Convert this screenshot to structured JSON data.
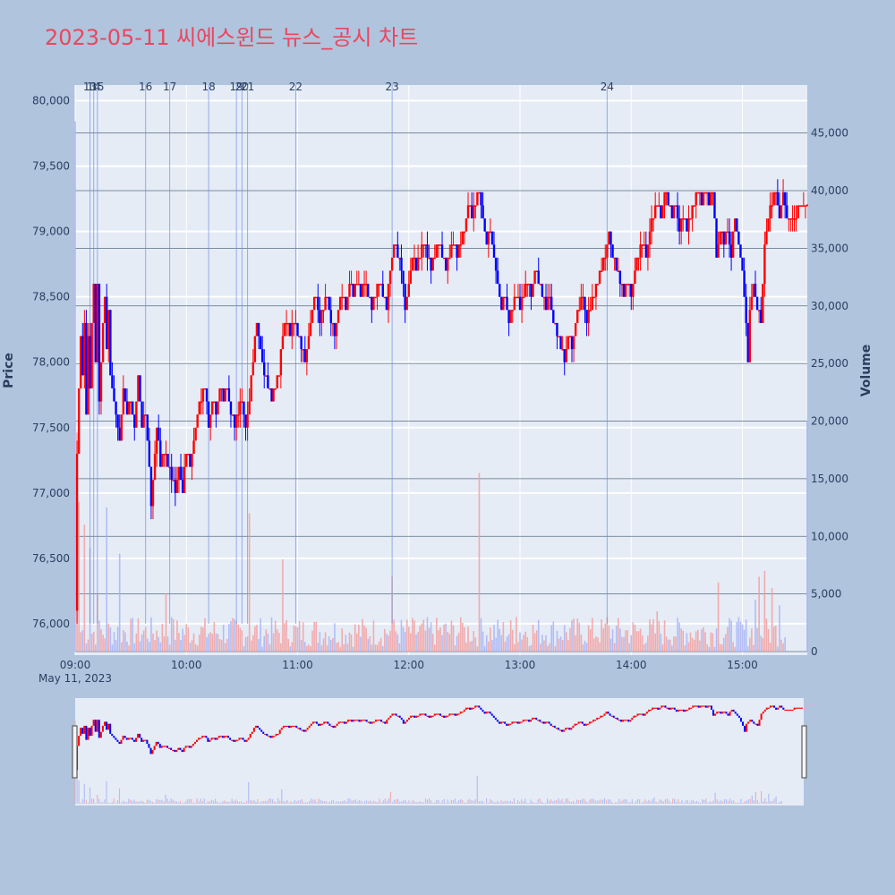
{
  "title": "2023-05-11 씨에스윈드 뉴스_공시 차트",
  "colors": {
    "background": "#b0c4de",
    "plot_bg": "#e5ecf6",
    "up": "#ff0000",
    "down": "#0000ff",
    "title": "#e8475f",
    "news_line": "#6f8fe6",
    "hgrid_right": "#5a6b80"
  },
  "chart_data": {
    "type": "candlestick",
    "title": "2023-05-11 씨에스윈드 뉴스_공시 차트",
    "ylabel": "Price",
    "y2label": "Volume",
    "date_label": "May 11, 2023",
    "x_ticks": [
      "09:00",
      "10:00",
      "11:00",
      "12:00",
      "13:00",
      "14:00",
      "15:00"
    ],
    "x_range_minutes": [
      0,
      395
    ],
    "y_ticks": [
      76000,
      76500,
      77000,
      77500,
      78000,
      78500,
      79000,
      79500,
      80000
    ],
    "y_range": [
      75760,
      80120
    ],
    "y_tick_labels": [
      "76,000",
      "76,500",
      "77,000",
      "77,500",
      "78,000",
      "78,500",
      "79,000",
      "79,500",
      "80,000"
    ],
    "y2_ticks": [
      0,
      5000,
      10000,
      15000,
      20000,
      25000,
      30000,
      35000,
      40000,
      45000
    ],
    "y2_tick_labels": [
      "0",
      "5,000",
      "10,000",
      "15,000",
      "20,000",
      "25,000",
      "30,000",
      "35,000",
      "40,000",
      "45,000"
    ],
    "y2_range": [
      0,
      48000
    ],
    "news_markers": [
      {
        "label": "13",
        "minute": 8
      },
      {
        "label": "14",
        "minute": 10
      },
      {
        "label": "15",
        "minute": 12
      },
      {
        "label": "16",
        "minute": 38
      },
      {
        "label": "17",
        "minute": 51
      },
      {
        "label": "18",
        "minute": 72
      },
      {
        "label": "19",
        "minute": 87
      },
      {
        "label": "20",
        "minute": 90
      },
      {
        "label": "21",
        "minute": 93
      },
      {
        "label": "22",
        "minute": 119
      },
      {
        "label": "23",
        "minute": 171
      },
      {
        "label": "24",
        "minute": 287
      }
    ],
    "price_path": [
      [
        0,
        76050
      ],
      [
        1,
        77300
      ],
      [
        2,
        77800
      ],
      [
        3,
        78200
      ],
      [
        4,
        77900
      ],
      [
        5,
        78300
      ],
      [
        6,
        77600
      ],
      [
        7,
        78200
      ],
      [
        8,
        77800
      ],
      [
        9,
        78300
      ],
      [
        10,
        78600
      ],
      [
        11,
        78000
      ],
      [
        12,
        78600
      ],
      [
        13,
        77700
      ],
      [
        14,
        78000
      ],
      [
        15,
        78300
      ],
      [
        16,
        78500
      ],
      [
        17,
        78100
      ],
      [
        18,
        78400
      ],
      [
        19,
        77900
      ],
      [
        20,
        77800
      ],
      [
        22,
        77600
      ],
      [
        24,
        77400
      ],
      [
        26,
        77800
      ],
      [
        28,
        77600
      ],
      [
        30,
        77700
      ],
      [
        32,
        77500
      ],
      [
        34,
        77900
      ],
      [
        36,
        77500
      ],
      [
        38,
        77600
      ],
      [
        40,
        77200
      ],
      [
        41,
        76900
      ],
      [
        42,
        77100
      ],
      [
        44,
        77500
      ],
      [
        46,
        77200
      ],
      [
        48,
        77300
      ],
      [
        50,
        77200
      ],
      [
        52,
        77100
      ],
      [
        54,
        77000
      ],
      [
        56,
        77200
      ],
      [
        58,
        77000
      ],
      [
        60,
        77300
      ],
      [
        62,
        77200
      ],
      [
        64,
        77400
      ],
      [
        66,
        77600
      ],
      [
        68,
        77700
      ],
      [
        70,
        77800
      ],
      [
        72,
        77500
      ],
      [
        74,
        77700
      ],
      [
        76,
        77600
      ],
      [
        78,
        77800
      ],
      [
        80,
        77700
      ],
      [
        82,
        77800
      ],
      [
        84,
        77600
      ],
      [
        86,
        77500
      ],
      [
        88,
        77600
      ],
      [
        90,
        77700
      ],
      [
        92,
        77500
      ],
      [
        94,
        77700
      ],
      [
        96,
        78000
      ],
      [
        98,
        78300
      ],
      [
        100,
        78100
      ],
      [
        102,
        77900
      ],
      [
        104,
        77800
      ],
      [
        106,
        77700
      ],
      [
        108,
        77800
      ],
      [
        110,
        77900
      ],
      [
        112,
        78200
      ],
      [
        114,
        78300
      ],
      [
        116,
        78200
      ],
      [
        118,
        78300
      ],
      [
        120,
        78200
      ],
      [
        122,
        78100
      ],
      [
        124,
        78000
      ],
      [
        126,
        78200
      ],
      [
        128,
        78400
      ],
      [
        130,
        78500
      ],
      [
        132,
        78300
      ],
      [
        134,
        78400
      ],
      [
        136,
        78500
      ],
      [
        138,
        78300
      ],
      [
        140,
        78200
      ],
      [
        142,
        78400
      ],
      [
        144,
        78500
      ],
      [
        146,
        78400
      ],
      [
        148,
        78600
      ],
      [
        150,
        78500
      ],
      [
        152,
        78600
      ],
      [
        154,
        78500
      ],
      [
        156,
        78600
      ],
      [
        158,
        78500
      ],
      [
        160,
        78400
      ],
      [
        162,
        78500
      ],
      [
        164,
        78600
      ],
      [
        166,
        78500
      ],
      [
        168,
        78400
      ],
      [
        170,
        78700
      ],
      [
        172,
        78900
      ],
      [
        174,
        78800
      ],
      [
        176,
        78700
      ],
      [
        178,
        78400
      ],
      [
        180,
        78600
      ],
      [
        182,
        78800
      ],
      [
        184,
        78700
      ],
      [
        186,
        78800
      ],
      [
        188,
        78900
      ],
      [
        190,
        78800
      ],
      [
        192,
        78700
      ],
      [
        194,
        78800
      ],
      [
        196,
        78900
      ],
      [
        198,
        78800
      ],
      [
        200,
        78700
      ],
      [
        202,
        78800
      ],
      [
        204,
        78900
      ],
      [
        206,
        78800
      ],
      [
        208,
        78900
      ],
      [
        210,
        79000
      ],
      [
        212,
        79200
      ],
      [
        214,
        79100
      ],
      [
        216,
        79200
      ],
      [
        218,
        79300
      ],
      [
        220,
        79100
      ],
      [
        222,
        78900
      ],
      [
        224,
        79000
      ],
      [
        226,
        78800
      ],
      [
        228,
        78600
      ],
      [
        230,
        78400
      ],
      [
        232,
        78500
      ],
      [
        234,
        78300
      ],
      [
        236,
        78400
      ],
      [
        238,
        78500
      ],
      [
        240,
        78400
      ],
      [
        242,
        78500
      ],
      [
        244,
        78600
      ],
      [
        246,
        78500
      ],
      [
        248,
        78700
      ],
      [
        250,
        78600
      ],
      [
        252,
        78500
      ],
      [
        254,
        78400
      ],
      [
        256,
        78500
      ],
      [
        258,
        78300
      ],
      [
        260,
        78200
      ],
      [
        262,
        78100
      ],
      [
        264,
        78000
      ],
      [
        266,
        78200
      ],
      [
        268,
        78100
      ],
      [
        270,
        78300
      ],
      [
        272,
        78400
      ],
      [
        274,
        78500
      ],
      [
        276,
        78300
      ],
      [
        278,
        78400
      ],
      [
        280,
        78500
      ],
      [
        282,
        78600
      ],
      [
        284,
        78700
      ],
      [
        286,
        78800
      ],
      [
        288,
        79000
      ],
      [
        290,
        78800
      ],
      [
        292,
        78700
      ],
      [
        294,
        78600
      ],
      [
        296,
        78500
      ],
      [
        298,
        78600
      ],
      [
        300,
        78500
      ],
      [
        302,
        78700
      ],
      [
        304,
        78800
      ],
      [
        306,
        78900
      ],
      [
        308,
        78800
      ],
      [
        310,
        79000
      ],
      [
        312,
        79100
      ],
      [
        314,
        79200
      ],
      [
        316,
        79100
      ],
      [
        318,
        79300
      ],
      [
        320,
        79200
      ],
      [
        322,
        79100
      ],
      [
        324,
        79200
      ],
      [
        326,
        79000
      ],
      [
        328,
        79100
      ],
      [
        330,
        79000
      ],
      [
        332,
        79100
      ],
      [
        334,
        79200
      ],
      [
        336,
        79300
      ],
      [
        338,
        79200
      ],
      [
        340,
        79300
      ],
      [
        342,
        79200
      ],
      [
        344,
        79300
      ],
      [
        346,
        78800
      ],
      [
        348,
        79000
      ],
      [
        350,
        78900
      ],
      [
        352,
        79000
      ],
      [
        354,
        78800
      ],
      [
        356,
        79100
      ],
      [
        358,
        78900
      ],
      [
        360,
        78700
      ],
      [
        362,
        78300
      ],
      [
        363,
        78000
      ],
      [
        364,
        78400
      ],
      [
        366,
        78600
      ],
      [
        368,
        78400
      ],
      [
        370,
        78300
      ],
      [
        372,
        78900
      ],
      [
        374,
        79100
      ],
      [
        376,
        79200
      ],
      [
        378,
        79300
      ],
      [
        380,
        79100
      ],
      [
        382,
        79300
      ],
      [
        384,
        79100
      ]
    ],
    "price_last": [
      395,
      79200
    ],
    "volume_spikes": [
      [
        0,
        46000
      ],
      [
        1,
        19000
      ],
      [
        2,
        13000
      ],
      [
        5,
        11000
      ],
      [
        8,
        9000
      ],
      [
        12,
        5000
      ],
      [
        17,
        12500
      ],
      [
        24,
        8500
      ],
      [
        49,
        5000
      ],
      [
        52,
        3000
      ],
      [
        94,
        12000
      ],
      [
        112,
        8000
      ],
      [
        171,
        6500
      ],
      [
        209,
        2500
      ],
      [
        218,
        15500
      ],
      [
        238,
        3000
      ],
      [
        287,
        3000
      ],
      [
        314,
        3500
      ],
      [
        347,
        6000
      ],
      [
        367,
        4500
      ],
      [
        369,
        6500
      ],
      [
        372,
        7000
      ],
      [
        376,
        5500
      ],
      [
        380,
        4000
      ],
      [
        395,
        20000
      ]
    ]
  }
}
